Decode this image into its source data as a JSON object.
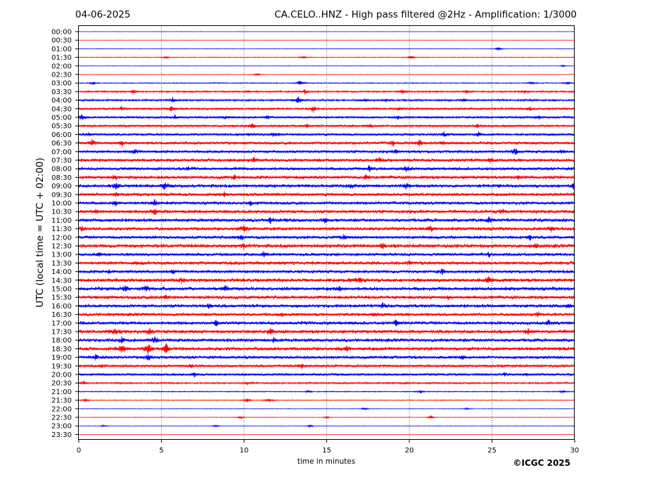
{
  "header": {
    "date": "04-06-2025",
    "title": "CA.CELO..HNZ - High pass filtered @2Hz - Amplification: 1/3000"
  },
  "footer": {
    "copyright": "©ICGC 2025"
  },
  "chart_data": {
    "type": "line",
    "title": "CA.CELO..HNZ - High pass filtered @2Hz - Amplification: 1/3000",
    "xlabel": "time in minutes",
    "ylabel": "UTC (local time = UTC + 02:00)",
    "xlim": [
      0,
      30
    ],
    "xticks": [
      0,
      5,
      10,
      15,
      20,
      25,
      30
    ],
    "grid": "vertical dotted at 5-minute intervals",
    "colors": {
      "odd_rows": "#ff0000",
      "even_rows": "#0000ff"
    },
    "rows": [
      {
        "label": "00:00",
        "amp": 0.3,
        "events": []
      },
      {
        "label": "00:30",
        "amp": 0.3,
        "events": []
      },
      {
        "label": "01:00",
        "amp": 0.4,
        "events": [
          {
            "t": 25.4,
            "a": 4
          }
        ]
      },
      {
        "label": "01:30",
        "amp": 0.6,
        "events": [
          {
            "t": 5.3,
            "a": 2
          },
          {
            "t": 13.6,
            "a": 2
          },
          {
            "t": 20.1,
            "a": 4
          }
        ]
      },
      {
        "label": "02:00",
        "amp": 0.4,
        "events": [
          {
            "t": 29.3,
            "a": 2
          }
        ]
      },
      {
        "label": "02:30",
        "amp": 0.4,
        "events": [
          {
            "t": 10.8,
            "a": 3
          }
        ]
      },
      {
        "label": "03:00",
        "amp": 0.8,
        "events": [
          {
            "t": 0.9,
            "a": 3
          },
          {
            "t": 13.4,
            "a": 7
          },
          {
            "t": 27.4,
            "a": 3
          },
          {
            "t": 29.6,
            "a": 3
          }
        ]
      },
      {
        "label": "03:30",
        "amp": 1.4,
        "events": [
          {
            "t": 3.3,
            "a": 4
          },
          {
            "t": 10.2,
            "a": 3
          },
          {
            "t": 13.7,
            "a": 5
          },
          {
            "t": 19.6,
            "a": 4
          },
          {
            "t": 23.5,
            "a": 3
          },
          {
            "t": 27.0,
            "a": 3
          }
        ]
      },
      {
        "label": "04:00",
        "amp": 1.6,
        "events": [
          {
            "t": 5.7,
            "a": 6
          },
          {
            "t": 13.3,
            "a": 7
          },
          {
            "t": 17.3,
            "a": 4
          },
          {
            "t": 18.6,
            "a": 3
          },
          {
            "t": 23.3,
            "a": 3
          }
        ]
      },
      {
        "label": "04:30",
        "amp": 1.8,
        "events": [
          {
            "t": 5.6,
            "a": 7
          },
          {
            "t": 14.2,
            "a": 6
          },
          {
            "t": 2.6,
            "a": 4
          },
          {
            "t": 19.4,
            "a": 3
          },
          {
            "t": 27.3,
            "a": 3
          }
        ]
      },
      {
        "label": "05:00",
        "amp": 2.0,
        "events": [
          {
            "t": 0.2,
            "a": 8
          },
          {
            "t": 5.8,
            "a": 4
          },
          {
            "t": 8.8,
            "a": 3
          },
          {
            "t": 11.4,
            "a": 3
          },
          {
            "t": 19.3,
            "a": 3
          },
          {
            "t": 27.8,
            "a": 4
          }
        ]
      },
      {
        "label": "05:30",
        "amp": 2.0,
        "events": [
          {
            "t": 10.5,
            "a": 6
          },
          {
            "t": 13.8,
            "a": 3
          },
          {
            "t": 17.6,
            "a": 3
          },
          {
            "t": 24.1,
            "a": 3
          }
        ]
      },
      {
        "label": "06:00",
        "amp": 2.2,
        "events": [
          {
            "t": 0.6,
            "a": 3
          },
          {
            "t": 10.3,
            "a": 4
          },
          {
            "t": 11.8,
            "a": 4
          },
          {
            "t": 22.1,
            "a": 4
          },
          {
            "t": 24.2,
            "a": 4
          },
          {
            "t": 28.6,
            "a": 3
          }
        ]
      },
      {
        "label": "06:30",
        "amp": 2.6,
        "events": [
          {
            "t": 0.8,
            "a": 5
          },
          {
            "t": 2.6,
            "a": 4
          },
          {
            "t": 19.0,
            "a": 5
          },
          {
            "t": 20.6,
            "a": 6
          },
          {
            "t": 22.0,
            "a": 4
          }
        ]
      },
      {
        "label": "07:00",
        "amp": 2.6,
        "events": [
          {
            "t": 3.4,
            "a": 4
          },
          {
            "t": 19.2,
            "a": 4
          },
          {
            "t": 26.4,
            "a": 6
          },
          {
            "t": 29.2,
            "a": 3
          }
        ]
      },
      {
        "label": "07:30",
        "amp": 2.8,
        "events": [
          {
            "t": 10.6,
            "a": 4
          },
          {
            "t": 18.2,
            "a": 5
          },
          {
            "t": 24.9,
            "a": 4
          }
        ]
      },
      {
        "label": "08:00",
        "amp": 2.8,
        "events": [
          {
            "t": 6.6,
            "a": 4
          },
          {
            "t": 17.6,
            "a": 6
          },
          {
            "t": 19.8,
            "a": 4
          }
        ]
      },
      {
        "label": "08:30",
        "amp": 3.0,
        "events": [
          {
            "t": 2.2,
            "a": 4
          },
          {
            "t": 9.4,
            "a": 3
          },
          {
            "t": 17.4,
            "a": 5
          },
          {
            "t": 26.6,
            "a": 3
          }
        ]
      },
      {
        "label": "09:00",
        "amp": 3.0,
        "events": [
          {
            "t": 2.3,
            "a": 7
          },
          {
            "t": 5.2,
            "a": 8
          },
          {
            "t": 16.5,
            "a": 4
          },
          {
            "t": 19.8,
            "a": 6
          },
          {
            "t": 30.0,
            "a": 6
          }
        ]
      },
      {
        "label": "09:30",
        "amp": 2.8,
        "events": [
          {
            "t": 2.3,
            "a": 4
          },
          {
            "t": 8.8,
            "a": 3
          },
          {
            "t": 30.0,
            "a": 4
          }
        ]
      },
      {
        "label": "10:00",
        "amp": 2.8,
        "events": [
          {
            "t": 4.6,
            "a": 6
          },
          {
            "t": 2.2,
            "a": 4
          },
          {
            "t": 10.4,
            "a": 3
          }
        ]
      },
      {
        "label": "10:30",
        "amp": 3.0,
        "events": [
          {
            "t": 1.0,
            "a": 4
          },
          {
            "t": 4.6,
            "a": 5
          },
          {
            "t": 25.6,
            "a": 4
          }
        ]
      },
      {
        "label": "11:00",
        "amp": 3.0,
        "events": [
          {
            "t": 11.6,
            "a": 5
          },
          {
            "t": 14.9,
            "a": 5
          },
          {
            "t": 24.8,
            "a": 6
          }
        ]
      },
      {
        "label": "11:30",
        "amp": 3.0,
        "events": [
          {
            "t": 0.2,
            "a": 4
          },
          {
            "t": 10.0,
            "a": 6
          },
          {
            "t": 21.3,
            "a": 5
          },
          {
            "t": 28.6,
            "a": 4
          }
        ]
      },
      {
        "label": "12:00",
        "amp": 2.8,
        "events": [
          {
            "t": 9.8,
            "a": 6
          },
          {
            "t": 16.0,
            "a": 4
          },
          {
            "t": 27.3,
            "a": 4
          }
        ]
      },
      {
        "label": "12:30",
        "amp": 3.2,
        "events": [
          {
            "t": 10.0,
            "a": 4
          },
          {
            "t": 18.4,
            "a": 4
          },
          {
            "t": 27.6,
            "a": 5
          }
        ]
      },
      {
        "label": "13:00",
        "amp": 2.8,
        "events": [
          {
            "t": 1.2,
            "a": 4
          },
          {
            "t": 11.2,
            "a": 4
          },
          {
            "t": 24.8,
            "a": 3
          }
        ]
      },
      {
        "label": "13:30",
        "amp": 3.0,
        "events": [
          {
            "t": 3.5,
            "a": 3
          },
          {
            "t": 20.0,
            "a": 4
          }
        ]
      },
      {
        "label": "14:00",
        "amp": 2.8,
        "events": [
          {
            "t": 1.8,
            "a": 3
          },
          {
            "t": 5.7,
            "a": 4
          },
          {
            "t": 22.0,
            "a": 4
          }
        ]
      },
      {
        "label": "14:30",
        "amp": 3.2,
        "events": [
          {
            "t": 6.2,
            "a": 4
          },
          {
            "t": 17.0,
            "a": 4
          },
          {
            "t": 24.8,
            "a": 6
          }
        ]
      },
      {
        "label": "15:00",
        "amp": 3.2,
        "events": [
          {
            "t": 2.8,
            "a": 4
          },
          {
            "t": 4.1,
            "a": 5
          },
          {
            "t": 8.9,
            "a": 5
          },
          {
            "t": 15.8,
            "a": 4
          }
        ]
      },
      {
        "label": "15:30",
        "amp": 3.0,
        "events": [
          {
            "t": 5.2,
            "a": 4
          },
          {
            "t": 22.4,
            "a": 3
          }
        ]
      },
      {
        "label": "16:00",
        "amp": 3.0,
        "events": [
          {
            "t": 7.9,
            "a": 4
          },
          {
            "t": 18.4,
            "a": 4
          },
          {
            "t": 29.6,
            "a": 4
          }
        ]
      },
      {
        "label": "16:30",
        "amp": 2.8,
        "events": [
          {
            "t": 12.3,
            "a": 3
          },
          {
            "t": 17.8,
            "a": 4
          },
          {
            "t": 27.8,
            "a": 4
          }
        ]
      },
      {
        "label": "17:00",
        "amp": 3.0,
        "events": [
          {
            "t": 8.3,
            "a": 5
          },
          {
            "t": 19.2,
            "a": 5
          },
          {
            "t": 28.4,
            "a": 4
          }
        ]
      },
      {
        "label": "17:30",
        "amp": 3.2,
        "events": [
          {
            "t": 2.2,
            "a": 5
          },
          {
            "t": 4.3,
            "a": 5
          },
          {
            "t": 11.6,
            "a": 5
          },
          {
            "t": 27.2,
            "a": 4
          }
        ]
      },
      {
        "label": "18:00",
        "amp": 3.0,
        "events": [
          {
            "t": 2.6,
            "a": 5
          },
          {
            "t": 4.6,
            "a": 5
          },
          {
            "t": 11.8,
            "a": 4
          }
        ]
      },
      {
        "label": "18:30",
        "amp": 3.2,
        "events": [
          {
            "t": 2.6,
            "a": 8
          },
          {
            "t": 4.2,
            "a": 11
          },
          {
            "t": 5.3,
            "a": 9
          },
          {
            "t": 16.2,
            "a": 4
          }
        ]
      },
      {
        "label": "19:00",
        "amp": 2.8,
        "events": [
          {
            "t": 1.0,
            "a": 4
          },
          {
            "t": 4.2,
            "a": 5
          },
          {
            "t": 23.2,
            "a": 3
          }
        ]
      },
      {
        "label": "19:30",
        "amp": 2.4,
        "events": [
          {
            "t": 1.4,
            "a": 3
          },
          {
            "t": 6.8,
            "a": 5
          },
          {
            "t": 13.5,
            "a": 4
          }
        ]
      },
      {
        "label": "20:00",
        "amp": 2.2,
        "events": [
          {
            "t": 7.0,
            "a": 4
          },
          {
            "t": 25.8,
            "a": 3
          },
          {
            "t": 27.1,
            "a": 3
          }
        ]
      },
      {
        "label": "20:30",
        "amp": 1.4,
        "events": [
          {
            "t": 0.3,
            "a": 4
          },
          {
            "t": 10.2,
            "a": 3
          },
          {
            "t": 19.8,
            "a": 3
          }
        ]
      },
      {
        "label": "21:00",
        "amp": 0.8,
        "events": [
          {
            "t": 13.9,
            "a": 3
          },
          {
            "t": 20.7,
            "a": 3
          },
          {
            "t": 29.3,
            "a": 3
          }
        ]
      },
      {
        "label": "21:30",
        "amp": 0.6,
        "events": [
          {
            "t": 0.4,
            "a": 3
          },
          {
            "t": 10.2,
            "a": 4
          },
          {
            "t": 11.5,
            "a": 4
          }
        ]
      },
      {
        "label": "22:00",
        "amp": 0.4,
        "events": [
          {
            "t": 17.3,
            "a": 3
          },
          {
            "t": 23.5,
            "a": 2
          }
        ]
      },
      {
        "label": "22:30",
        "amp": 0.4,
        "events": [
          {
            "t": 9.8,
            "a": 3
          },
          {
            "t": 21.3,
            "a": 4
          },
          {
            "t": 15.0,
            "a": 2
          }
        ]
      },
      {
        "label": "23:00",
        "amp": 0.4,
        "events": [
          {
            "t": 1.5,
            "a": 2
          },
          {
            "t": 14.0,
            "a": 3
          },
          {
            "t": 8.3,
            "a": 2
          }
        ]
      },
      {
        "label": "23:30",
        "amp": 0.0,
        "events": []
      }
    ]
  }
}
